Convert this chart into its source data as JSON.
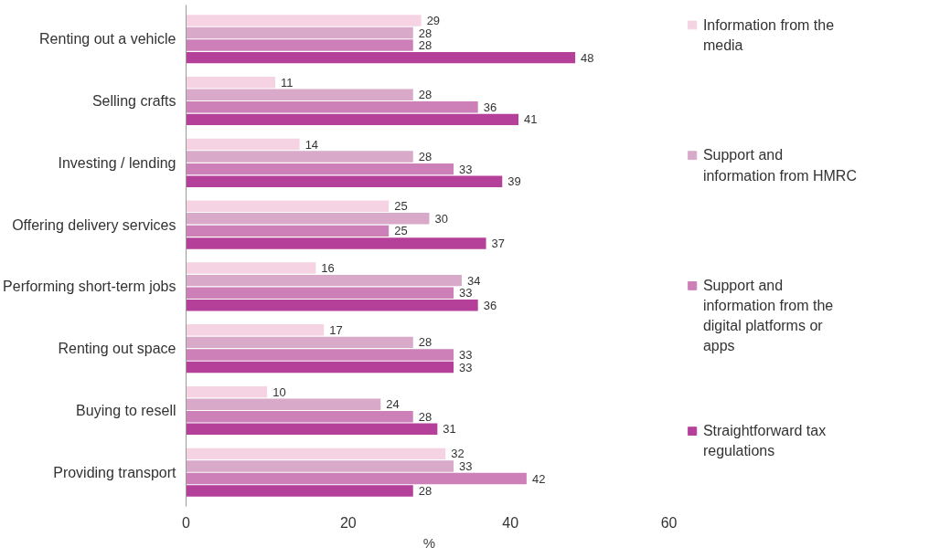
{
  "chart_data": {
    "type": "bar",
    "orientation": "horizontal",
    "xlabel": "%",
    "categories": [
      "Renting out a vehicle",
      "Selling crafts",
      "Investing / lending",
      "Offering delivery services",
      "Performing short-term jobs",
      "Renting out space",
      "Buying to resell",
      "Providing transport"
    ],
    "series": [
      {
        "name": "Information from the media",
        "color": "#f5d3e3",
        "values": [
          29,
          11,
          14,
          25,
          16,
          17,
          10,
          32
        ]
      },
      {
        "name": "Support and information from HMRC",
        "color": "#d9a9c9",
        "values": [
          28,
          28,
          28,
          30,
          34,
          28,
          24,
          33
        ]
      },
      {
        "name": "Support and information from the digital platforms or apps",
        "color": "#cc80b7",
        "values": [
          28,
          36,
          33,
          25,
          33,
          33,
          28,
          42
        ]
      },
      {
        "name": "Straightforward tax regulations",
        "color": "#b5409a",
        "values": [
          48,
          41,
          39,
          37,
          36,
          33,
          31,
          28
        ]
      }
    ],
    "xlim": [
      0,
      60
    ],
    "xticks": [
      0,
      20,
      40,
      60
    ],
    "data_labels": true,
    "legend": "right",
    "grid": false
  }
}
